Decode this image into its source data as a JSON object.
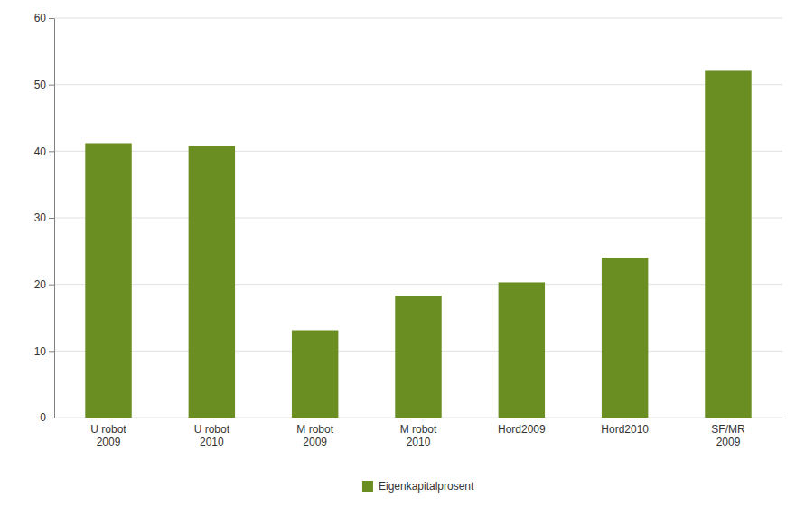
{
  "chart_data": {
    "type": "bar",
    "categories": [
      "U robot\n2009",
      "U robot\n2010",
      "M robot\n2009",
      "M robot\n2010",
      "Hord2009",
      "Hord2010",
      "SF/MR\n2009"
    ],
    "series": [
      {
        "name": "Eigenkapitalprosent",
        "color": "#6b8e23",
        "values": [
          41.2,
          40.8,
          13.1,
          18.3,
          20.3,
          24.0,
          52.2
        ]
      }
    ],
    "ylim": [
      0,
      60
    ],
    "yticks": [
      0,
      10,
      20,
      30,
      40,
      50,
      60
    ],
    "grid": true,
    "legend": "bottom"
  }
}
